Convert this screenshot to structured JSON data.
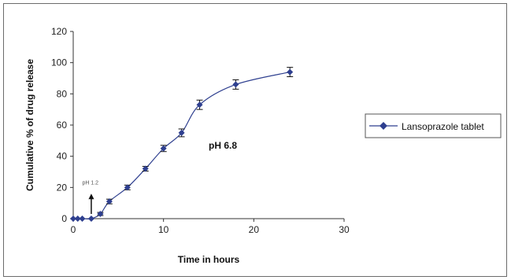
{
  "chart_data": {
    "type": "line",
    "title": "",
    "xlabel": "Time in hours",
    "ylabel": "Cumulative % of drug release",
    "xlim": [
      0,
      30
    ],
    "ylim": [
      0,
      120
    ],
    "x_ticks": [
      "0",
      "10",
      "20",
      "30"
    ],
    "y_ticks": [
      "0",
      "20",
      "40",
      "60",
      "80",
      "100",
      "120"
    ],
    "grid": false,
    "legend_position": "right",
    "series": [
      {
        "name": "Lansoprazole tablet",
        "color": "#2e3f8f",
        "marker": "diamond",
        "x": [
          0,
          0.5,
          1,
          2,
          3,
          4,
          6,
          8,
          10,
          12,
          14,
          18,
          24
        ],
        "y": [
          0,
          0,
          0,
          0,
          3,
          11,
          20,
          32,
          45,
          55,
          73,
          86,
          94
        ],
        "error": [
          0,
          0,
          0,
          0,
          1,
          1.5,
          1.5,
          1.5,
          2,
          2.5,
          3,
          3,
          3
        ]
      }
    ],
    "annotations": [
      {
        "text": "pH 6.8",
        "x": 15,
        "y": 45,
        "style": "bold"
      },
      {
        "text": "pH 1.2",
        "x": 1,
        "y": 22,
        "style": "small"
      }
    ],
    "arrow": {
      "x": 2,
      "y_from": 3,
      "y_to": 16
    }
  }
}
